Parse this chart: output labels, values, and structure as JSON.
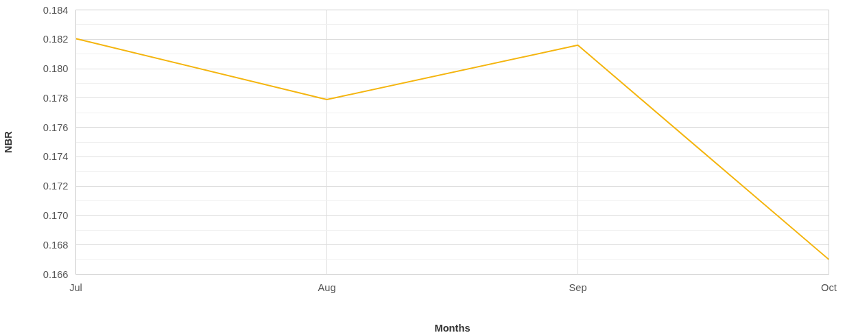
{
  "chart_data": {
    "type": "line",
    "xlabel": "Months",
    "ylabel": "NBR",
    "categories": [
      "Jul",
      "Aug",
      "Sep",
      "Oct"
    ],
    "series": [
      {
        "color": "#f4b50f",
        "values": [
          0.18205,
          0.1779,
          0.1816,
          0.167
        ]
      }
    ],
    "ylim": [
      0.166,
      0.184
    ],
    "yticks": [
      {
        "value": 0.166,
        "label": "0.166"
      },
      {
        "value": 0.168,
        "label": "0.168"
      },
      {
        "value": 0.17,
        "label": "0.170"
      },
      {
        "value": 0.172,
        "label": "0.172"
      },
      {
        "value": 0.174,
        "label": "0.174"
      },
      {
        "value": 0.176,
        "label": "0.176"
      },
      {
        "value": 0.178,
        "label": "0.178"
      },
      {
        "value": 0.18,
        "label": "0.180"
      },
      {
        "value": 0.182,
        "label": "0.182"
      },
      {
        "value": 0.184,
        "label": "0.184"
      }
    ],
    "grid": true,
    "marker": "none",
    "line_style": "solid"
  }
}
